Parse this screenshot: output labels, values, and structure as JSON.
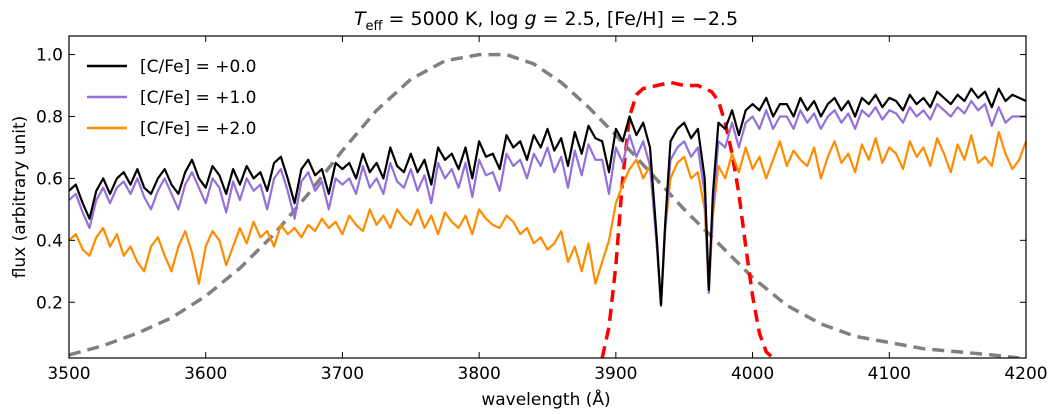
{
  "chart_data": {
    "type": "line",
    "title": {
      "teff_symbol": "T",
      "teff_subscript": "eff",
      "teff_value": " = 5000 K, ",
      "logg_prefix": "log ",
      "logg_symbol": "g",
      "logg_value": " = 2.5, [Fe/H] = −2.5"
    },
    "xlabel": "wavelength (Å)",
    "ylabel": "flux (arbitrary unit)",
    "xlim": [
      3500,
      4200
    ],
    "ylim": [
      0.02,
      1.06
    ],
    "x_ticks": [
      "3500",
      "3600",
      "3700",
      "3800",
      "3900",
      "4000",
      "4100",
      "4200"
    ],
    "y_ticks": [
      "0.2",
      "0.4",
      "0.6",
      "0.8",
      "1.0"
    ],
    "grid": false,
    "legend_position": "top-left",
    "series": [
      {
        "name": "[C/Fe] = +0.0",
        "color": "#000000",
        "style": "solid",
        "x": [
          3500,
          3505,
          3510,
          3515,
          3520,
          3525,
          3530,
          3535,
          3540,
          3545,
          3550,
          3555,
          3560,
          3565,
          3570,
          3575,
          3580,
          3585,
          3590,
          3595,
          3600,
          3605,
          3610,
          3615,
          3620,
          3625,
          3630,
          3635,
          3640,
          3645,
          3650,
          3655,
          3660,
          3665,
          3670,
          3675,
          3680,
          3685,
          3690,
          3695,
          3700,
          3705,
          3710,
          3715,
          3720,
          3725,
          3730,
          3735,
          3740,
          3745,
          3750,
          3755,
          3760,
          3765,
          3770,
          3775,
          3780,
          3785,
          3790,
          3795,
          3800,
          3805,
          3810,
          3815,
          3820,
          3825,
          3830,
          3835,
          3840,
          3845,
          3850,
          3855,
          3860,
          3865,
          3870,
          3875,
          3880,
          3885,
          3890,
          3895,
          3900,
          3905,
          3910,
          3915,
          3920,
          3925,
          3930,
          3933,
          3936,
          3940,
          3945,
          3950,
          3955,
          3960,
          3965,
          3968,
          3971,
          3975,
          3980,
          3985,
          3990,
          3995,
          4000,
          4005,
          4010,
          4015,
          4020,
          4025,
          4030,
          4035,
          4040,
          4045,
          4050,
          4055,
          4060,
          4065,
          4070,
          4075,
          4080,
          4085,
          4090,
          4095,
          4100,
          4105,
          4110,
          4115,
          4120,
          4125,
          4130,
          4135,
          4140,
          4145,
          4150,
          4155,
          4160,
          4165,
          4170,
          4175,
          4180,
          4185,
          4190,
          4195,
          4200
        ],
        "y": [
          0.56,
          0.58,
          0.52,
          0.47,
          0.56,
          0.6,
          0.55,
          0.6,
          0.62,
          0.58,
          0.63,
          0.57,
          0.55,
          0.6,
          0.63,
          0.58,
          0.55,
          0.62,
          0.66,
          0.6,
          0.57,
          0.64,
          0.61,
          0.55,
          0.63,
          0.58,
          0.64,
          0.6,
          0.62,
          0.56,
          0.65,
          0.67,
          0.6,
          0.52,
          0.63,
          0.66,
          0.61,
          0.63,
          0.55,
          0.65,
          0.63,
          0.65,
          0.6,
          0.68,
          0.62,
          0.65,
          0.6,
          0.7,
          0.64,
          0.62,
          0.68,
          0.62,
          0.66,
          0.58,
          0.7,
          0.66,
          0.68,
          0.63,
          0.7,
          0.6,
          0.72,
          0.67,
          0.68,
          0.63,
          0.74,
          0.7,
          0.72,
          0.66,
          0.74,
          0.7,
          0.76,
          0.69,
          0.73,
          0.64,
          0.75,
          0.68,
          0.77,
          0.73,
          0.72,
          0.62,
          0.76,
          0.72,
          0.8,
          0.74,
          0.78,
          0.7,
          0.4,
          0.19,
          0.45,
          0.72,
          0.76,
          0.78,
          0.73,
          0.76,
          0.6,
          0.24,
          0.55,
          0.78,
          0.76,
          0.82,
          0.74,
          0.82,
          0.84,
          0.82,
          0.86,
          0.8,
          0.84,
          0.84,
          0.8,
          0.86,
          0.82,
          0.85,
          0.8,
          0.84,
          0.86,
          0.82,
          0.85,
          0.8,
          0.86,
          0.84,
          0.87,
          0.83,
          0.86,
          0.85,
          0.82,
          0.87,
          0.84,
          0.86,
          0.83,
          0.88,
          0.86,
          0.84,
          0.87,
          0.85,
          0.89,
          0.86,
          0.88,
          0.83,
          0.89,
          0.85,
          0.87,
          0.86,
          0.85
        ]
      },
      {
        "name": "[C/Fe] = +1.0",
        "color": "#9370DB",
        "style": "solid",
        "x": [
          3500,
          3505,
          3510,
          3515,
          3520,
          3525,
          3530,
          3535,
          3540,
          3545,
          3550,
          3555,
          3560,
          3565,
          3570,
          3575,
          3580,
          3585,
          3590,
          3595,
          3600,
          3605,
          3610,
          3615,
          3620,
          3625,
          3630,
          3635,
          3640,
          3645,
          3650,
          3655,
          3660,
          3665,
          3670,
          3675,
          3680,
          3685,
          3690,
          3695,
          3700,
          3705,
          3710,
          3715,
          3720,
          3725,
          3730,
          3735,
          3740,
          3745,
          3750,
          3755,
          3760,
          3765,
          3770,
          3775,
          3780,
          3785,
          3790,
          3795,
          3800,
          3805,
          3810,
          3815,
          3820,
          3825,
          3830,
          3835,
          3840,
          3845,
          3850,
          3855,
          3860,
          3865,
          3870,
          3875,
          3880,
          3885,
          3890,
          3895,
          3900,
          3905,
          3910,
          3915,
          3920,
          3925,
          3930,
          3933,
          3936,
          3940,
          3945,
          3950,
          3955,
          3960,
          3965,
          3968,
          3971,
          3975,
          3980,
          3985,
          3990,
          3995,
          4000,
          4005,
          4010,
          4015,
          4020,
          4025,
          4030,
          4035,
          4040,
          4045,
          4050,
          4055,
          4060,
          4065,
          4070,
          4075,
          4080,
          4085,
          4090,
          4095,
          4100,
          4105,
          4110,
          4115,
          4120,
          4125,
          4130,
          4135,
          4140,
          4145,
          4150,
          4155,
          4160,
          4165,
          4170,
          4175,
          4180,
          4185,
          4190,
          4195,
          4200
        ],
        "y": [
          0.53,
          0.55,
          0.49,
          0.44,
          0.53,
          0.57,
          0.52,
          0.57,
          0.59,
          0.55,
          0.6,
          0.54,
          0.5,
          0.56,
          0.6,
          0.55,
          0.5,
          0.58,
          0.62,
          0.57,
          0.52,
          0.6,
          0.57,
          0.49,
          0.59,
          0.53,
          0.6,
          0.56,
          0.58,
          0.5,
          0.6,
          0.63,
          0.56,
          0.47,
          0.59,
          0.62,
          0.56,
          0.59,
          0.5,
          0.6,
          0.58,
          0.6,
          0.55,
          0.64,
          0.57,
          0.6,
          0.55,
          0.65,
          0.59,
          0.57,
          0.63,
          0.56,
          0.61,
          0.52,
          0.65,
          0.6,
          0.63,
          0.57,
          0.65,
          0.54,
          0.66,
          0.61,
          0.62,
          0.56,
          0.68,
          0.64,
          0.66,
          0.6,
          0.68,
          0.64,
          0.7,
          0.62,
          0.67,
          0.57,
          0.69,
          0.61,
          0.71,
          0.66,
          0.66,
          0.55,
          0.7,
          0.65,
          0.74,
          0.67,
          0.72,
          0.64,
          0.38,
          0.19,
          0.43,
          0.66,
          0.7,
          0.72,
          0.67,
          0.7,
          0.55,
          0.23,
          0.5,
          0.72,
          0.7,
          0.78,
          0.7,
          0.78,
          0.8,
          0.76,
          0.82,
          0.76,
          0.8,
          0.8,
          0.76,
          0.82,
          0.78,
          0.81,
          0.76,
          0.8,
          0.82,
          0.78,
          0.81,
          0.76,
          0.82,
          0.8,
          0.83,
          0.79,
          0.82,
          0.81,
          0.78,
          0.83,
          0.8,
          0.82,
          0.79,
          0.84,
          0.82,
          0.8,
          0.83,
          0.81,
          0.85,
          0.82,
          0.84,
          0.77,
          0.83,
          0.78,
          0.8,
          0.8,
          0.8
        ]
      },
      {
        "name": "[C/Fe] = +2.0",
        "color": "#FF8C00",
        "style": "solid",
        "x": [
          3500,
          3505,
          3510,
          3515,
          3520,
          3525,
          3530,
          3535,
          3540,
          3545,
          3550,
          3555,
          3560,
          3565,
          3570,
          3575,
          3580,
          3585,
          3590,
          3595,
          3600,
          3605,
          3610,
          3615,
          3620,
          3625,
          3630,
          3635,
          3640,
          3645,
          3650,
          3655,
          3660,
          3665,
          3670,
          3675,
          3680,
          3685,
          3690,
          3695,
          3700,
          3705,
          3710,
          3715,
          3720,
          3725,
          3730,
          3735,
          3740,
          3745,
          3750,
          3755,
          3760,
          3765,
          3770,
          3775,
          3780,
          3785,
          3790,
          3795,
          3800,
          3805,
          3810,
          3815,
          3820,
          3825,
          3830,
          3835,
          3840,
          3845,
          3850,
          3855,
          3860,
          3865,
          3870,
          3875,
          3880,
          3885,
          3890,
          3895,
          3900,
          3905,
          3910,
          3915,
          3920,
          3925,
          3930,
          3933,
          3936,
          3940,
          3945,
          3950,
          3955,
          3960,
          3965,
          3968,
          3971,
          3975,
          3980,
          3985,
          3990,
          3995,
          4000,
          4005,
          4010,
          4015,
          4020,
          4025,
          4030,
          4035,
          4040,
          4045,
          4050,
          4055,
          4060,
          4065,
          4070,
          4075,
          4080,
          4085,
          4090,
          4095,
          4100,
          4105,
          4110,
          4115,
          4120,
          4125,
          4130,
          4135,
          4140,
          4145,
          4150,
          4155,
          4160,
          4165,
          4170,
          4175,
          4180,
          4185,
          4190,
          4195,
          4200
        ],
        "y": [
          0.4,
          0.42,
          0.37,
          0.35,
          0.41,
          0.44,
          0.38,
          0.42,
          0.35,
          0.38,
          0.33,
          0.3,
          0.38,
          0.41,
          0.35,
          0.3,
          0.38,
          0.43,
          0.36,
          0.26,
          0.38,
          0.43,
          0.4,
          0.32,
          0.38,
          0.44,
          0.39,
          0.46,
          0.41,
          0.43,
          0.38,
          0.45,
          0.42,
          0.44,
          0.41,
          0.45,
          0.43,
          0.47,
          0.44,
          0.46,
          0.42,
          0.48,
          0.45,
          0.43,
          0.5,
          0.45,
          0.48,
          0.44,
          0.5,
          0.47,
          0.45,
          0.5,
          0.44,
          0.48,
          0.42,
          0.49,
          0.46,
          0.44,
          0.48,
          0.42,
          0.5,
          0.47,
          0.45,
          0.44,
          0.48,
          0.46,
          0.42,
          0.44,
          0.39,
          0.41,
          0.37,
          0.39,
          0.43,
          0.33,
          0.38,
          0.3,
          0.39,
          0.26,
          0.33,
          0.4,
          0.52,
          0.58,
          0.63,
          0.66,
          0.6,
          0.64,
          0.38,
          0.19,
          0.43,
          0.6,
          0.65,
          0.67,
          0.6,
          0.62,
          0.5,
          0.24,
          0.48,
          0.64,
          0.6,
          0.68,
          0.62,
          0.7,
          0.63,
          0.67,
          0.6,
          0.66,
          0.72,
          0.64,
          0.69,
          0.66,
          0.64,
          0.7,
          0.6,
          0.67,
          0.72,
          0.65,
          0.68,
          0.62,
          0.71,
          0.66,
          0.73,
          0.65,
          0.7,
          0.68,
          0.63,
          0.72,
          0.67,
          0.7,
          0.64,
          0.73,
          0.68,
          0.62,
          0.71,
          0.66,
          0.74,
          0.65,
          0.67,
          0.64,
          0.75,
          0.68,
          0.63,
          0.66,
          0.72
        ]
      },
      {
        "color": "#808080",
        "style": "dashed",
        "x": [
          3500,
          3525,
          3550,
          3575,
          3600,
          3625,
          3650,
          3675,
          3700,
          3725,
          3750,
          3775,
          3800,
          3820,
          3840,
          3860,
          3880,
          3900,
          3925,
          3950,
          3975,
          4000,
          4025,
          4050,
          4075,
          4100,
          4125,
          4150,
          4175,
          4195
        ],
        "y": [
          0.03,
          0.06,
          0.1,
          0.15,
          0.22,
          0.31,
          0.42,
          0.55,
          0.69,
          0.82,
          0.92,
          0.98,
          1.0,
          1.0,
          0.97,
          0.91,
          0.83,
          0.74,
          0.62,
          0.5,
          0.39,
          0.28,
          0.19,
          0.13,
          0.09,
          0.07,
          0.05,
          0.04,
          0.03,
          0.02
        ]
      },
      {
        "color": "#FF0000",
        "style": "dashed",
        "x": [
          3890,
          3895,
          3900,
          3905,
          3910,
          3915,
          3920,
          3930,
          3940,
          3950,
          3960,
          3970,
          3975,
          3980,
          3985,
          3990,
          3995,
          4000,
          4005,
          4010,
          4015
        ],
        "y": [
          0.02,
          0.12,
          0.32,
          0.6,
          0.8,
          0.87,
          0.89,
          0.9,
          0.91,
          0.9,
          0.9,
          0.88,
          0.85,
          0.78,
          0.68,
          0.55,
          0.38,
          0.22,
          0.1,
          0.04,
          0.02
        ]
      }
    ]
  }
}
